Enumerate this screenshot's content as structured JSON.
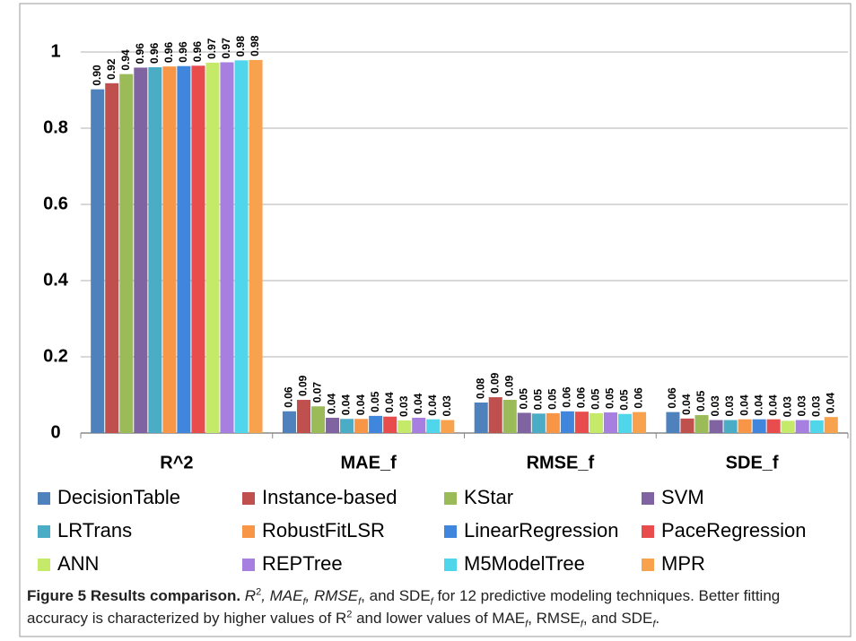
{
  "chart_data": {
    "type": "bar",
    "categories": [
      "R^2",
      "MAE_f",
      "RMSE_f",
      "SDE_f"
    ],
    "ylim": [
      0,
      1
    ],
    "yticks": [
      0,
      0.2,
      0.4,
      0.6,
      0.8,
      1
    ],
    "grid": true,
    "series": [
      {
        "name": "DecisionTable",
        "color": "#4f81bd",
        "values": [
          0.902,
          0.057,
          0.08,
          0.055
        ],
        "value_labels": [
          "0.90",
          "0.06",
          "0.08",
          "0.06"
        ]
      },
      {
        "name": "Instance-based",
        "color": "#c0504d",
        "values": [
          0.918,
          0.087,
          0.094,
          0.038
        ],
        "value_labels": [
          "0.92",
          "0.09",
          "0.09",
          "0.04"
        ]
      },
      {
        "name": "KStar",
        "color": "#9bbb59",
        "values": [
          0.942,
          0.07,
          0.087,
          0.047
        ],
        "value_labels": [
          "0.94",
          "0.07",
          "0.09",
          "0.05"
        ]
      },
      {
        "name": "SVM",
        "color": "#8064a2",
        "values": [
          0.959,
          0.04,
          0.053,
          0.034
        ],
        "value_labels": [
          "0.96",
          "0.04",
          "0.05",
          "0.03"
        ]
      },
      {
        "name": "LRTrans",
        "color": "#4bacc6",
        "values": [
          0.96,
          0.037,
          0.051,
          0.034
        ],
        "value_labels": [
          "0.96",
          "0.04",
          "0.05",
          "0.03"
        ]
      },
      {
        "name": "RobustFitLSR",
        "color": "#f79646",
        "values": [
          0.962,
          0.037,
          0.052,
          0.036
        ],
        "value_labels": [
          "0.96",
          "0.04",
          "0.05",
          "0.04"
        ]
      },
      {
        "name": "LinearRegression",
        "color": "#3f86dc",
        "values": [
          0.963,
          0.045,
          0.057,
          0.036
        ],
        "value_labels": [
          "0.96",
          "0.05",
          "0.06",
          "0.04"
        ]
      },
      {
        "name": "PaceRegression",
        "color": "#e84c4c",
        "values": [
          0.964,
          0.043,
          0.056,
          0.036
        ],
        "value_labels": [
          "0.96",
          "0.04",
          "0.06",
          "0.04"
        ]
      },
      {
        "name": "ANN",
        "color": "#c5ea6a",
        "values": [
          0.972,
          0.033,
          0.052,
          0.032
        ],
        "value_labels": [
          "0.97",
          "0.03",
          "0.05",
          "0.03"
        ]
      },
      {
        "name": "REPTree",
        "color": "#a67fe0",
        "values": [
          0.973,
          0.04,
          0.054,
          0.034
        ],
        "value_labels": [
          "0.97",
          "0.04",
          "0.05",
          "0.03"
        ]
      },
      {
        "name": "M5ModelTree",
        "color": "#4fd6ea",
        "values": [
          0.978,
          0.036,
          0.05,
          0.033
        ],
        "value_labels": [
          "0.98",
          "0.04",
          "0.05",
          "0.03"
        ]
      },
      {
        "name": "MPR",
        "color": "#f9a24e",
        "values": [
          0.979,
          0.034,
          0.055,
          0.042
        ],
        "value_labels": [
          "0.98",
          "0.03",
          "0.06",
          "0.04"
        ]
      }
    ]
  },
  "caption": {
    "label": "Figure 5 Results comparison.",
    "runs": [
      " R",
      "2",
      ", MAE",
      "f",
      ", RMSE",
      "f",
      ", and SDE",
      "f",
      " for 12 predictive modeling techniques. Better fitting accuracy is characterized by higher values of R",
      "2",
      " and lower values of MAE",
      "f",
      ", RMSE",
      "f",
      ", and SDE",
      "f",
      "."
    ]
  }
}
